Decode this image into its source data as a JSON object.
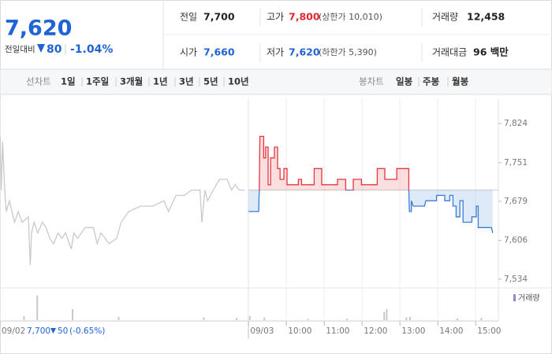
{
  "header": {
    "price": "7,620",
    "change_label": "전일대비",
    "change": "80",
    "change_rate": "-1.04%"
  },
  "stats": [
    [
      {
        "label": "전일",
        "value": "7,700",
        "color": "#222222"
      },
      {
        "label": "고가",
        "value": "7,800",
        "note": "(상한가 10,010)",
        "color": "#e0282e"
      },
      {
        "label": "거래량",
        "value": "12,458",
        "color": "#222222"
      }
    ],
    [
      {
        "label": "시가",
        "value": "7,660",
        "color": "#1f63d4"
      },
      {
        "label": "저가",
        "value": "7,620",
        "note": "(하한가 5,390)",
        "color": "#1f63d4"
      },
      {
        "label": "거래대금",
        "value": "96 백만",
        "color": "#222222"
      }
    ]
  ],
  "tabs": {
    "line_label": "선차트",
    "line_periods": [
      "1일",
      "1주일",
      "3개월",
      "1년",
      "3년",
      "5년",
      "10년"
    ],
    "active_line_period": 0,
    "candle_label": "봉차트",
    "candle_periods": [
      "일봉",
      "주봉",
      "월봉"
    ]
  },
  "prev_day": {
    "close": "7,700",
    "change": "50",
    "change_rate": "(-0.65%)"
  },
  "chart_data": [
    {
      "type": "line",
      "baseline": 7700,
      "xlim": [
        -394,
        396
      ],
      "ylim": [
        7519,
        7871
      ],
      "grid": true,
      "yticks": [
        {
          "value": 7824,
          "label": "7,824"
        },
        {
          "value": 7751,
          "label": "7,751"
        },
        {
          "value": 7679,
          "label": "7,679"
        },
        {
          "value": 7606,
          "label": "7,606"
        },
        {
          "value": 7534,
          "label": "7,534"
        }
      ],
      "xticks": [
        {
          "value": -394,
          "label": "09/02"
        },
        {
          "value": 0,
          "label": "09/03"
        },
        {
          "value": 60,
          "label": "10:00"
        },
        {
          "value": 120,
          "label": "11:00"
        },
        {
          "value": 180,
          "label": "12:00"
        },
        {
          "value": 240,
          "label": "13:00"
        },
        {
          "value": 300,
          "label": "14:00"
        },
        {
          "value": 360,
          "label": "15:00"
        }
      ],
      "series": [
        {
          "color": "#c9c9c9",
          "x": [
            -394,
            -392,
            -390,
            -386,
            -384,
            -379,
            -371,
            -365,
            -359,
            -349,
            -346,
            -344,
            -340,
            -334,
            -327,
            -321,
            -315,
            -309,
            -302,
            -296,
            -290,
            -281,
            -277,
            -271,
            -259,
            -246,
            -240,
            -234,
            -221,
            -209,
            -202,
            -190,
            -171,
            -152,
            -134,
            -127,
            -115,
            -102,
            -90,
            -77,
            -74,
            -69,
            -65,
            -56,
            -46,
            -34,
            -27,
            -21,
            -15,
            -6
          ],
          "values": [
            7800,
            7700,
            7790,
            7690,
            7660,
            7680,
            7640,
            7660,
            7640,
            7650,
            7560,
            7620,
            7640,
            7620,
            7640,
            7630,
            7610,
            7600,
            7620,
            7610,
            7620,
            7590,
            7620,
            7610,
            7630,
            7630,
            7600,
            7620,
            7600,
            7610,
            7640,
            7660,
            7670,
            7670,
            7680,
            7660,
            7690,
            7690,
            7700,
            7700,
            7640,
            7700,
            7680,
            7700,
            7720,
            7720,
            7700,
            7710,
            7700,
            7700
          ]
        },
        {
          "color": "#e8353d",
          "down_color": "#3a7bd8",
          "x": [
            0,
            16,
            17,
            18,
            24,
            24,
            27,
            27,
            31,
            31,
            35,
            35,
            41,
            41,
            46,
            46,
            50,
            50,
            56,
            56,
            61,
            61,
            79,
            79,
            84,
            84,
            104,
            104,
            116,
            116,
            141,
            141,
            154,
            154,
            166,
            166,
            179,
            179,
            204,
            204,
            216,
            216,
            235,
            235,
            254,
            254,
            255,
            258,
            258,
            261,
            279,
            281,
            298,
            298,
            311,
            311,
            319,
            319,
            324,
            324,
            329,
            329,
            335,
            335,
            340,
            340,
            354,
            354,
            361,
            361,
            364,
            364,
            385,
            387
          ],
          "values": [
            7660,
            7660,
            7700,
            7800,
            7800,
            7760,
            7760,
            7780,
            7780,
            7710,
            7710,
            7760,
            7760,
            7780,
            7780,
            7740,
            7740,
            7720,
            7720,
            7740,
            7740,
            7710,
            7710,
            7720,
            7720,
            7710,
            7710,
            7740,
            7740,
            7710,
            7710,
            7720,
            7720,
            7700,
            7700,
            7720,
            7720,
            7710,
            7710,
            7740,
            7740,
            7720,
            7720,
            7740,
            7740,
            7700,
            7660,
            7660,
            7680,
            7670,
            7670,
            7680,
            7680,
            7690,
            7690,
            7680,
            7680,
            7690,
            7690,
            7670,
            7670,
            7650,
            7650,
            7680,
            7680,
            7640,
            7640,
            7650,
            7650,
            7670,
            7670,
            7630,
            7630,
            7620
          ]
        }
      ]
    },
    {
      "type": "bar",
      "name": "거래량",
      "color": "#9b84d6",
      "bar_color": "#c8c8c8",
      "xlim": [
        -394,
        396
      ],
      "ylim": [
        0,
        100
      ],
      "x": [
        -356,
        -335,
        -279,
        -206,
        -71,
        -19,
        2,
        25,
        94,
        156,
        215,
        219,
        250,
        256,
        331,
        369
      ],
      "values": [
        15,
        90,
        40,
        12,
        10,
        8,
        15,
        10,
        5,
        6,
        30,
        40,
        10,
        12,
        6,
        8
      ]
    }
  ]
}
